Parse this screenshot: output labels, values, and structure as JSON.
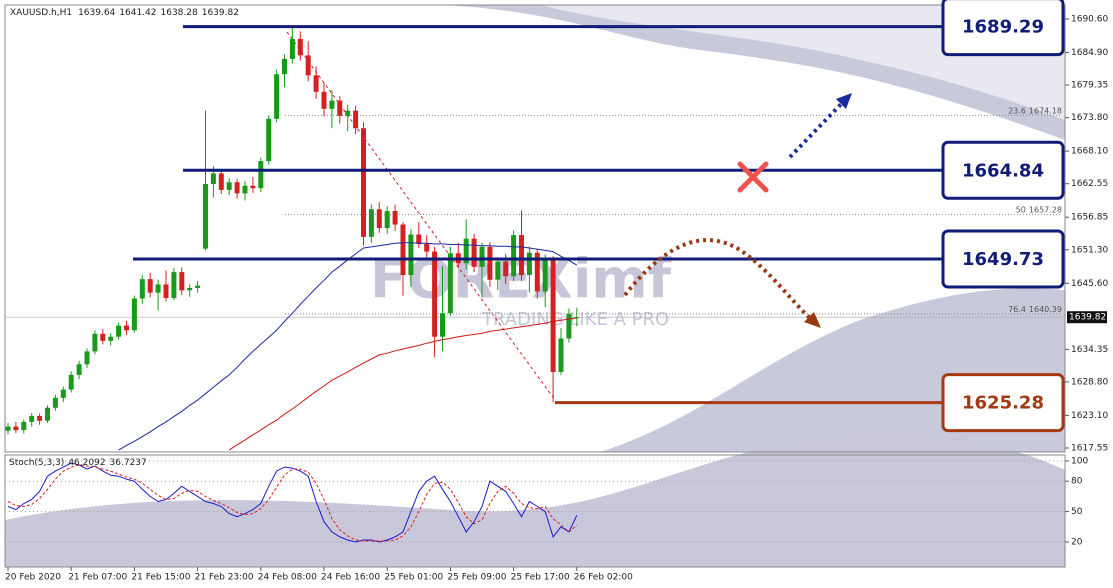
{
  "header": {
    "symbol": "XAUUSD.h,H1",
    "ohlc": [
      1639.64,
      1641.42,
      1638.28,
      1639.82
    ]
  },
  "watermark": "FOREXimf",
  "watermark_tagline": "TRADING LIKE A PRO",
  "chart_data": [
    {
      "type": "candlestick",
      "categories": [
        "20 Feb 2020",
        null,
        null,
        null,
        null,
        null,
        null,
        null,
        "21 Feb 07:00",
        null,
        null,
        null,
        null,
        null,
        null,
        null,
        "21 Feb 15:00",
        null,
        null,
        null,
        null,
        null,
        null,
        null,
        "21 Feb 23:00",
        null,
        null,
        null,
        null,
        null,
        null,
        null,
        "24 Feb 08:00",
        null,
        null,
        null,
        null,
        null,
        null,
        null,
        "24 Feb 16:00",
        null,
        null,
        null,
        null,
        null,
        null,
        null,
        "25 Feb 01:00",
        null,
        null,
        null,
        null,
        null,
        null,
        null,
        "25 Feb 09:00",
        null,
        null,
        null,
        null,
        null,
        null,
        null,
        "25 Feb 17:00",
        null,
        null,
        null,
        null,
        null,
        null,
        null,
        "26 Feb 02:00"
      ],
      "open": [
        1620.5,
        1621.2,
        1620.6,
        1622.0,
        1623.0,
        1622.2,
        1624.4,
        1626.1,
        1627.5,
        1630.0,
        1631.8,
        1634.0,
        1637.0,
        1635.8,
        1636.5,
        1638.4,
        1637.6,
        1643.0,
        1646.3,
        1644.0,
        1645.4,
        1643.1,
        1647.5,
        1644.4,
        1644.8,
        1651.5,
        1662.5,
        1664.3,
        1661.5,
        1662.8,
        1660.9,
        1662.2,
        1661.8,
        1666.4,
        1673.6,
        1681.2,
        1683.8,
        1687.2,
        1684.4,
        1681.0,
        1678.2,
        1675.3,
        1676.7,
        1674.1,
        1675.0,
        1672.0,
        1653.5,
        1658.2,
        1655.0,
        1657.9,
        1655.6,
        1647.0,
        1653.9,
        1652.3,
        1651.0,
        1636.5,
        1640.5,
        1650.7,
        1649.0,
        1653.2,
        1648.4,
        1651.8,
        1646.2,
        1649.3,
        1646.8,
        1653.8,
        1647.0,
        1650.8,
        1644.2,
        1649.6,
        1630.5,
        1636.2,
        1639.64
      ],
      "high": [
        1621.8,
        1622.0,
        1622.4,
        1623.5,
        1623.4,
        1624.8,
        1626.6,
        1628.0,
        1630.6,
        1632.4,
        1634.5,
        1637.6,
        1637.8,
        1637.1,
        1638.9,
        1639.2,
        1643.5,
        1647.0,
        1647.4,
        1646.2,
        1647.8,
        1648.2,
        1648.3,
        1645.4,
        1646.0,
        1675.0,
        1665.5,
        1664.8,
        1663.5,
        1663.4,
        1663.0,
        1663.7,
        1667.0,
        1674.2,
        1682.0,
        1684.6,
        1689.3,
        1688.5,
        1686.8,
        1682.5,
        1679.8,
        1678.5,
        1677.5,
        1676.0,
        1675.8,
        1673.0,
        1659.0,
        1659.4,
        1658.7,
        1659.0,
        1656.0,
        1654.8,
        1656.0,
        1653.8,
        1651.8,
        1648.5,
        1651.8,
        1652.5,
        1656.5,
        1654.0,
        1652.5,
        1652.6,
        1650.0,
        1650.6,
        1654.6,
        1658.0,
        1651.8,
        1651.5,
        1650.5,
        1650.2,
        1638.0,
        1641.3,
        1641.42
      ],
      "low": [
        1619.9,
        1620.1,
        1620.0,
        1621.2,
        1621.5,
        1621.8,
        1623.9,
        1625.4,
        1627.0,
        1629.3,
        1631.2,
        1633.5,
        1635.2,
        1635.0,
        1636.0,
        1636.8,
        1637.2,
        1642.1,
        1643.2,
        1641.0,
        1642.5,
        1642.7,
        1643.6,
        1643.3,
        1644.0,
        1651.2,
        1660.2,
        1660.8,
        1660.6,
        1660.0,
        1659.7,
        1661.0,
        1661.1,
        1665.8,
        1673.0,
        1679.0,
        1683.0,
        1683.5,
        1680.0,
        1677.0,
        1674.0,
        1672.0,
        1672.8,
        1671.5,
        1671.0,
        1652.0,
        1652.5,
        1654.2,
        1654.0,
        1654.5,
        1643.5,
        1645.0,
        1651.6,
        1650.0,
        1633.0,
        1634.0,
        1640.0,
        1648.2,
        1648.0,
        1647.5,
        1643.2,
        1645.0,
        1644.5,
        1645.5,
        1646.0,
        1646.0,
        1644.0,
        1643.0,
        1641.5,
        1625.3,
        1630.0,
        1635.5,
        1638.28
      ],
      "close": [
        1621.2,
        1620.6,
        1622.0,
        1623.0,
        1622.2,
        1624.4,
        1626.1,
        1627.5,
        1630.0,
        1631.8,
        1634.0,
        1637.0,
        1635.8,
        1636.5,
        1638.4,
        1637.6,
        1643.0,
        1646.3,
        1644.0,
        1645.4,
        1643.1,
        1647.5,
        1644.4,
        1644.8,
        1645.2,
        1662.5,
        1664.3,
        1661.5,
        1662.8,
        1660.9,
        1662.2,
        1661.8,
        1666.4,
        1673.6,
        1681.2,
        1683.8,
        1687.2,
        1684.4,
        1681.0,
        1678.2,
        1675.3,
        1676.7,
        1674.1,
        1675.0,
        1672.0,
        1653.5,
        1658.2,
        1655.0,
        1657.9,
        1655.6,
        1647.0,
        1653.9,
        1652.3,
        1651.0,
        1636.5,
        1640.5,
        1650.7,
        1649.0,
        1653.2,
        1648.4,
        1651.8,
        1646.2,
        1649.3,
        1646.8,
        1653.8,
        1647.0,
        1650.8,
        1644.2,
        1649.6,
        1630.5,
        1636.2,
        1640.4,
        1639.82
      ],
      "up_color": "#1a9a1a",
      "down_color": "#d42020",
      "series": [
        {
          "color": "#1c2a9c",
          "values": [
            null,
            null,
            null,
            null,
            null,
            null,
            null,
            null,
            null,
            null,
            null,
            null,
            null,
            null,
            1617.2,
            1618.0,
            1618.7,
            1619.5,
            1620.3,
            1621.2,
            1622.0,
            1622.9,
            1623.8,
            1624.8,
            1625.7,
            1626.8,
            1627.9,
            1629.0,
            1630.0,
            1631.3,
            1632.7,
            1634.0,
            1635.2,
            1636.4,
            1637.6,
            1639.1,
            1640.5,
            1642.0,
            1643.4,
            1644.8,
            1646.1,
            1647.5,
            1648.5,
            1649.6,
            1650.6,
            1651.6,
            1651.8,
            1652.0,
            1652.2,
            1652.4,
            1652.5,
            1652.5,
            1652.4,
            1652.4,
            1652.3,
            1652.3,
            1652.2,
            1652.2,
            1652.1,
            1652.1,
            1652.0,
            1652.0,
            1651.9,
            1651.9,
            1651.8,
            1651.8,
            1651.6,
            1651.4,
            1651.2,
            1651.0,
            1650.2,
            1649.5,
            1648.7
          ]
        },
        {
          "color": "#d01818",
          "values": [
            null,
            null,
            null,
            null,
            null,
            null,
            null,
            null,
            null,
            null,
            null,
            null,
            null,
            null,
            null,
            null,
            null,
            null,
            null,
            null,
            null,
            null,
            null,
            null,
            null,
            null,
            null,
            null,
            1617.2,
            1618.1,
            1618.9,
            1619.8,
            1620.6,
            1621.5,
            1622.3,
            1623.3,
            1624.2,
            1625.2,
            1626.2,
            1627.2,
            1628.1,
            1629.1,
            1629.8,
            1630.5,
            1631.3,
            1632.0,
            1632.7,
            1633.4,
            1633.7,
            1634.1,
            1634.4,
            1634.7,
            1635.0,
            1635.4,
            1635.7,
            1636.0,
            1636.2,
            1636.5,
            1636.7,
            1636.9,
            1637.1,
            1637.4,
            1637.6,
            1637.8,
            1638.0,
            1638.2,
            1638.4,
            1638.6,
            1638.8,
            1639.1,
            1639.3,
            1639.5,
            1639.7
          ]
        }
      ],
      "ylim": [
        1616.87,
        1692.98
      ],
      "yticks": [
        {
          "value": 1690.6,
          "label": "1690.60"
        },
        {
          "value": 1684.9,
          "label": "1684.90"
        },
        {
          "value": 1679.35,
          "label": "1679.35"
        },
        {
          "value": 1673.8,
          "label": "1673.80"
        },
        {
          "value": 1668.1,
          "label": "1668.10"
        },
        {
          "value": 1662.55,
          "label": "1662.55"
        },
        {
          "value": 1656.85,
          "label": "1656.85"
        },
        {
          "value": 1651.3,
          "label": "1651.30"
        },
        {
          "value": 1645.6,
          "label": "1645.60"
        },
        {
          "value": 1634.35,
          "label": "1634.35"
        },
        {
          "value": 1628.8,
          "label": "1628.80"
        },
        {
          "value": 1623.1,
          "label": "1623.10"
        },
        {
          "value": 1617.55,
          "label": "1617.55"
        }
      ],
      "last_price": 1639.82,
      "levels": [
        {
          "value": 1689.29,
          "color": "#101c78"
        },
        {
          "value": 1664.84,
          "color": "#101c78"
        },
        {
          "value": 1649.73,
          "color": "#101c78"
        },
        {
          "value": 1625.28,
          "color": "#a33a14"
        }
      ],
      "fibs": [
        {
          "ratio": 23.6,
          "price": 1674.18
        },
        {
          "ratio": 50.0,
          "price": 1657.28
        },
        {
          "ratio": 76.4,
          "price": 1640.39
        }
      ]
    },
    {
      "type": "line",
      "title": "Stoch(5,3,3)",
      "series": [
        {
          "color": "#1a1ad0",
          "values": [
            55,
            52,
            58,
            62,
            70,
            85,
            90,
            94,
            98,
            96,
            92,
            95,
            90,
            86,
            85,
            82,
            80,
            72,
            65,
            60,
            62,
            68,
            75,
            70,
            65,
            60,
            58,
            55,
            48,
            45,
            48,
            52,
            58,
            75,
            90,
            94,
            93,
            90,
            85,
            60,
            40,
            30,
            25,
            22,
            20,
            22,
            22,
            20,
            22,
            25,
            30,
            50,
            70,
            80,
            85,
            72,
            60,
            45,
            30,
            40,
            55,
            80,
            75,
            70,
            58,
            45,
            60,
            55,
            50,
            25,
            35,
            30,
            46.2092
          ]
        },
        {
          "color": "#e02020",
          "dashed": true,
          "values": [
            60,
            56,
            55,
            57,
            63,
            72,
            82,
            90,
            94,
            96,
            95,
            94,
            92,
            90,
            87,
            84,
            82,
            78,
            72,
            66,
            62,
            63,
            68,
            71,
            70,
            65,
            61,
            58,
            54,
            49,
            47,
            48,
            53,
            62,
            74,
            86,
            92,
            92,
            89,
            78,
            62,
            43,
            32,
            26,
            22,
            21,
            21,
            21,
            21,
            22,
            26,
            35,
            50,
            67,
            78,
            79,
            72,
            59,
            45,
            38,
            42,
            58,
            70,
            75,
            68,
            58,
            54,
            53,
            55,
            43,
            37,
            30,
            36.7237
          ]
        }
      ],
      "ylim": [
        -4.7,
        105.9
      ],
      "yticks": [
        100,
        80,
        50,
        20
      ]
    }
  ]
}
